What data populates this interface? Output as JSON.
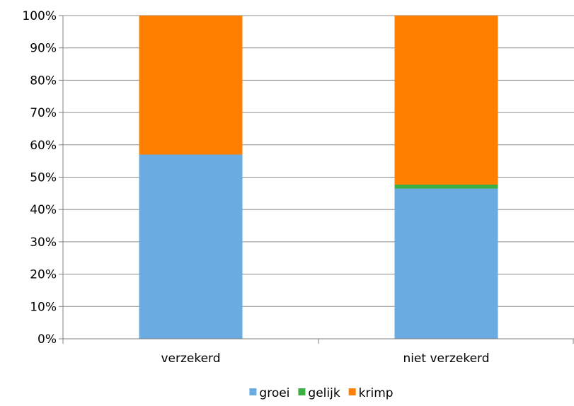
{
  "chart_data": {
    "type": "bar",
    "stacked": true,
    "categories": [
      "verzekerd",
      "niet verzekerd"
    ],
    "series": [
      {
        "name": "groei",
        "color": "#6aabe2",
        "values": [
          57,
          46.5
        ]
      },
      {
        "name": "gelijk",
        "color": "#3cb043",
        "values": [
          0,
          1.2
        ]
      },
      {
        "name": "krimp",
        "color": "#ff7f00",
        "values": [
          43,
          52.3
        ]
      }
    ],
    "ylim": [
      0,
      100
    ],
    "yticks": [
      "0%",
      "10%",
      "20%",
      "30%",
      "40%",
      "50%",
      "60%",
      "70%",
      "80%",
      "90%",
      "100%"
    ],
    "grid": true,
    "legend": "bottom"
  }
}
